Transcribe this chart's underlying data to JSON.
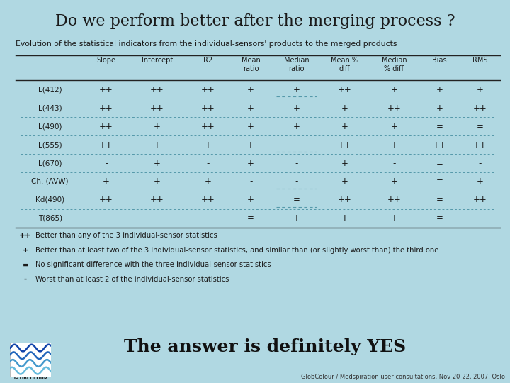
{
  "title": "Do we perform better after the merging process ?",
  "subtitle": "Evolution of the statistical indicators from the individual-sensors' products to the merged products",
  "bg_color": "#b0d8e2",
  "title_color": "#1a1a1a",
  "col_headers": [
    "",
    "Slope",
    "Intercept",
    "R2",
    "Mean\nratio",
    "Median\nratio",
    "Mean %\ndiff",
    "Median\n% diff",
    "Bias",
    "RMS"
  ],
  "row_labels": [
    "L(412)",
    "L(443)",
    "L(490)",
    "L(555)",
    "L(670)",
    "Ch. (AVW)",
    "Kd(490)",
    "T(865)"
  ],
  "table_data": [
    [
      "++",
      "++",
      "++",
      "+",
      "+",
      "++",
      "+",
      "+",
      "+"
    ],
    [
      "++",
      "++",
      "++",
      "+",
      "+",
      "+",
      "++",
      "+",
      "++"
    ],
    [
      "++",
      "+",
      "++",
      "+",
      "+",
      "+",
      "+",
      "=",
      "="
    ],
    [
      "++",
      "+",
      "+",
      "+",
      "-",
      "++",
      "+",
      "++",
      "++"
    ],
    [
      "-",
      "+",
      "-",
      "+",
      "-",
      "+",
      "-",
      "=",
      "-"
    ],
    [
      "+",
      "+",
      "+",
      "-",
      "-",
      "+",
      "+",
      "=",
      "+"
    ],
    [
      "++",
      "++",
      "++",
      "+",
      "=",
      "++",
      "++",
      "=",
      "++"
    ],
    [
      "-",
      "-",
      "-",
      "=",
      "+",
      "+",
      "+",
      "=",
      "-"
    ]
  ],
  "dashed_cell_rows": [
    0,
    3,
    5,
    6
  ],
  "legend_items": [
    [
      "++",
      "Better than any of the 3 individual-sensor statistics"
    ],
    [
      "+",
      "Better than at least two of the 3 individual-sensor statistics, and similar than (or slightly worst than) the third one"
    ],
    [
      "=",
      "No significant difference with the three individual-sensor statistics"
    ],
    [
      "-",
      "Worst than at least 2 of the individual-sensor statistics"
    ]
  ],
  "answer_text": "The answer is definitely YES",
  "footer_text": "GlobColour / Medspiration user consultations, Nov 20-22, 2007, Oslo"
}
